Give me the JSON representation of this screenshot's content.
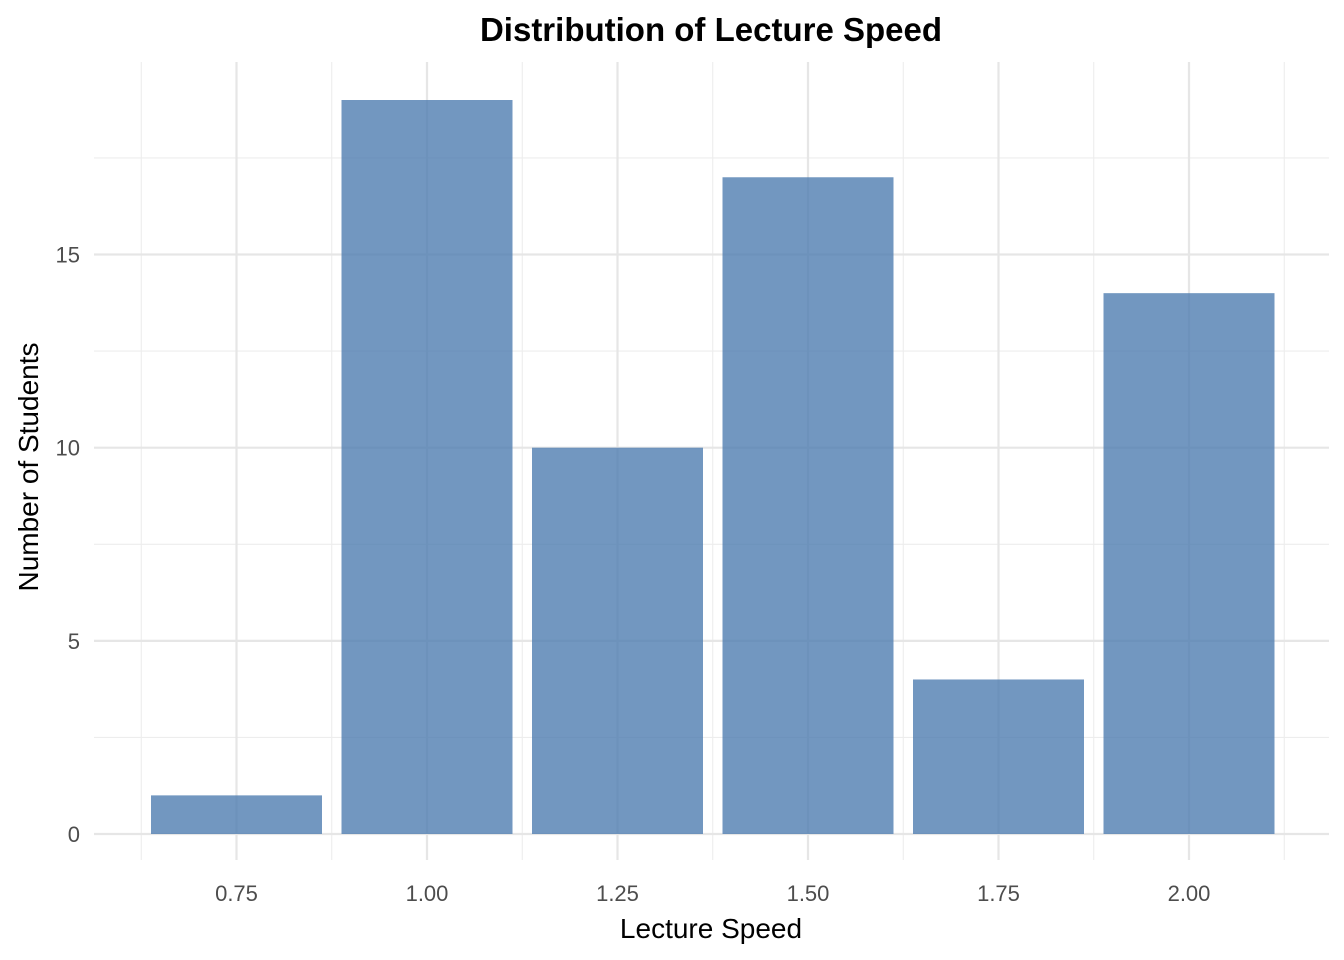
{
  "chart_data": {
    "type": "bar",
    "title": "Distribution of Lecture Speed",
    "xlabel": "Lecture Speed",
    "ylabel": "Number of Students",
    "x": [
      0.75,
      1.0,
      1.25,
      1.5,
      1.75,
      2.0
    ],
    "x_tick_labels": [
      "0.75",
      "1.00",
      "1.25",
      "1.50",
      "1.75",
      "2.00"
    ],
    "values": [
      1,
      19,
      10,
      17,
      4,
      14
    ],
    "y_ticks": [
      0,
      5,
      10,
      15
    ],
    "ylim": [
      0,
      19
    ],
    "grid": true,
    "bar_color": "#4a7aae",
    "bar_opacity": 0.78
  }
}
